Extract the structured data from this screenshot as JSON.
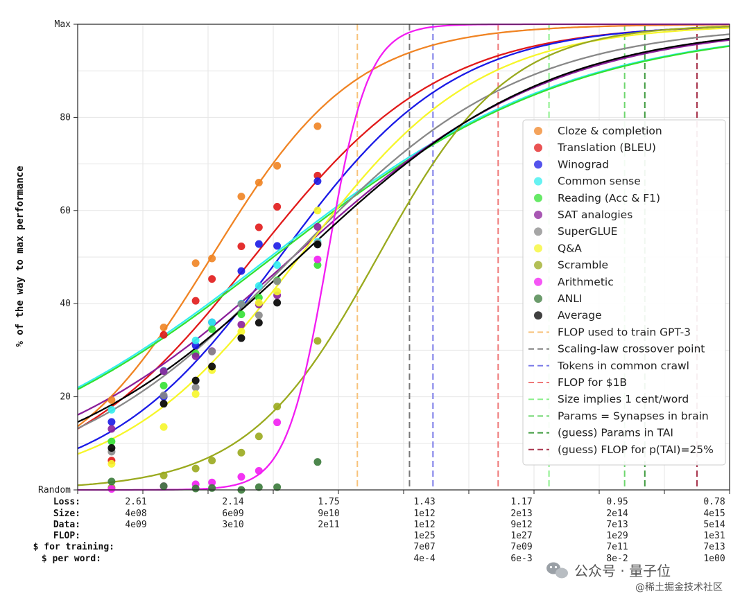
{
  "chart_data": {
    "type": "line",
    "ylabel": "% of the way to max performance",
    "ylim": [
      0,
      100
    ],
    "y_tick_labels": [
      "Random",
      "20",
      "40",
      "60",
      "80",
      "Max"
    ],
    "y_tick_values": [
      0,
      20,
      40,
      60,
      80,
      100
    ],
    "grid": true,
    "legend_placement": "center-right",
    "x_scale": "log (effective compute / loss)",
    "x_columns": [
      {
        "Loss": "2.61",
        "Size": "4e08",
        "Data": "4e09",
        "FLOP": "",
        "$ for training": "",
        "$ per word": ""
      },
      {
        "Loss": "2.14",
        "Size": "6e09",
        "Data": "3e10",
        "FLOP": "",
        "$ for training": "",
        "$ per word": ""
      },
      {
        "Loss": "1.75",
        "Size": "9e10",
        "Data": "2e11",
        "FLOP": "",
        "$ for training": "",
        "$ per word": ""
      },
      {
        "Loss": "1.43",
        "Size": "1e12",
        "Data": "1e12",
        "FLOP": "1e25",
        "$ for training": "7e07",
        "$ per word": "4e-4"
      },
      {
        "Loss": "1.17",
        "Size": "2e13",
        "Data": "9e12",
        "FLOP": "1e27",
        "$ for training": "7e09",
        "$ per word": "6e-3"
      },
      {
        "Loss": "0.95",
        "Size": "2e14",
        "Data": "7e13",
        "FLOP": "1e29",
        "$ for training": "7e11",
        "$ per word": "8e-2"
      },
      {
        "Loss": "0.78",
        "Size": "4e15",
        "Data": "5e14",
        "FLOP": "1e31",
        "$ for training": "7e13",
        "$ per word": "1e00"
      }
    ],
    "row_labels": [
      "Loss:",
      "Size:",
      "Data:",
      "FLOP:",
      "$ for training:",
      "$ per word:"
    ],
    "x_ticks": [
      0.0,
      0.1,
      0.2,
      0.3,
      0.4,
      0.5,
      0.6,
      0.7,
      0.8,
      0.9,
      1.0
    ],
    "series": [
      {
        "name": "Cloze & completion",
        "color": "#f08424",
        "fit": {
          "mid": 0.205,
          "k": 9.0
        },
        "points": [
          [
            0.052,
            19.3
          ],
          [
            0.132,
            34.9
          ],
          [
            0.181,
            48.7
          ],
          [
            0.206,
            49.7
          ],
          [
            0.251,
            63.0
          ],
          [
            0.278,
            66.0
          ],
          [
            0.306,
            69.6
          ],
          [
            0.368,
            78.1
          ]
        ]
      },
      {
        "name": "Translation (BLEU)",
        "color": "#e11a1a",
        "fit": {
          "mid": 0.27,
          "k": 7.0
        },
        "points": [
          [
            0.052,
            6.3
          ],
          [
            0.132,
            33.3
          ],
          [
            0.181,
            40.6
          ],
          [
            0.206,
            45.3
          ],
          [
            0.251,
            52.3
          ],
          [
            0.278,
            56.4
          ],
          [
            0.306,
            60.8
          ],
          [
            0.368,
            67.5
          ]
        ]
      },
      {
        "name": "Winograd",
        "color": "#1a1ae6",
        "fit": {
          "mid": 0.31,
          "k": 7.5
        },
        "points": [
          [
            0.052,
            14.6
          ],
          [
            0.132,
            20.0
          ],
          [
            0.181,
            31.0
          ],
          [
            0.206,
            36.0
          ],
          [
            0.251,
            47.0
          ],
          [
            0.278,
            52.8
          ],
          [
            0.306,
            52.4
          ],
          [
            0.368,
            66.3
          ]
        ]
      },
      {
        "name": "Common sense",
        "color": "#33eeee",
        "fit": {
          "mid": 0.295,
          "k": 4.3
        },
        "points": [
          [
            0.052,
            17.2
          ],
          [
            0.132,
            25.6
          ],
          [
            0.181,
            32.1
          ],
          [
            0.206,
            36.0
          ],
          [
            0.251,
            40.0
          ],
          [
            0.278,
            43.8
          ],
          [
            0.306,
            48.3
          ],
          [
            0.368,
            53.3
          ]
        ]
      },
      {
        "name": "Reading (Acc & F1)",
        "color": "#33e133",
        "fit": {
          "mid": 0.3,
          "k": 4.3
        },
        "points": [
          [
            0.052,
            10.4
          ],
          [
            0.132,
            22.4
          ],
          [
            0.181,
            29.3
          ],
          [
            0.206,
            34.5
          ],
          [
            0.251,
            37.7
          ],
          [
            0.278,
            41.3
          ],
          [
            0.306,
            45.0
          ],
          [
            0.368,
            48.3
          ]
        ]
      },
      {
        "name": "SAT analogies",
        "color": "#8b1f9a",
        "fit": {
          "mid": 0.33,
          "k": 5.0
        },
        "points": [
          [
            0.052,
            13.1
          ],
          [
            0.132,
            25.5
          ],
          [
            0.181,
            28.7
          ],
          [
            0.206,
            29.8
          ],
          [
            0.251,
            35.5
          ],
          [
            0.278,
            39.8
          ],
          [
            0.306,
            41.8
          ],
          [
            0.368,
            56.5
          ]
        ]
      },
      {
        "name": "SuperGLUE",
        "color": "#888888",
        "fit": {
          "mid": 0.33,
          "k": 5.7
        },
        "points": [
          [
            0.052,
            8.2
          ],
          [
            0.132,
            20.3
          ],
          [
            0.181,
            22.0
          ],
          [
            0.206,
            29.7
          ],
          [
            0.251,
            39.9
          ],
          [
            0.278,
            37.5
          ],
          [
            0.306,
            44.8
          ],
          [
            0.368,
            53.0
          ]
        ]
      },
      {
        "name": "Q&A",
        "color": "#f6f62a",
        "fit": {
          "mid": 0.34,
          "k": 7.3
        },
        "points": [
          [
            0.052,
            5.6
          ],
          [
            0.132,
            13.5
          ],
          [
            0.181,
            20.6
          ],
          [
            0.206,
            25.7
          ],
          [
            0.251,
            34.0
          ],
          [
            0.278,
            40.2
          ],
          [
            0.306,
            42.6
          ],
          [
            0.368,
            60.0
          ]
        ]
      },
      {
        "name": "Scramble",
        "color": "#9aaa1e",
        "fit": {
          "mid": 0.46,
          "k": 10.0
        },
        "points": [
          [
            0.052,
            0.5
          ],
          [
            0.132,
            3.1
          ],
          [
            0.181,
            4.6
          ],
          [
            0.206,
            6.3
          ],
          [
            0.251,
            8.0
          ],
          [
            0.278,
            11.5
          ],
          [
            0.306,
            17.9
          ],
          [
            0.368,
            32.0
          ]
        ]
      },
      {
        "name": "Arithmetic",
        "color": "#f21df2",
        "fit": {
          "mid": 0.383,
          "k": 32.0
        },
        "points": [
          [
            0.052,
            0.2
          ],
          [
            0.132,
            0.8
          ],
          [
            0.181,
            1.2
          ],
          [
            0.206,
            1.6
          ],
          [
            0.251,
            2.8
          ],
          [
            0.278,
            4.1
          ],
          [
            0.306,
            14.5
          ],
          [
            0.368,
            49.5
          ]
        ]
      },
      {
        "name": "ANLI",
        "color": "#3a7a3a",
        "fit": null,
        "points": [
          [
            0.052,
            1.8
          ],
          [
            0.132,
            0.8
          ],
          [
            0.181,
            0.3
          ],
          [
            0.206,
            0.4
          ],
          [
            0.251,
            0.0
          ],
          [
            0.278,
            0.6
          ],
          [
            0.306,
            0.6
          ],
          [
            0.368,
            6.0
          ]
        ]
      },
      {
        "name": "Average",
        "color": "#000000",
        "fit": {
          "mid": 0.34,
          "k": 5.2
        },
        "points": [
          [
            0.052,
            9.0
          ],
          [
            0.132,
            18.5
          ],
          [
            0.181,
            23.5
          ],
          [
            0.206,
            26.5
          ],
          [
            0.251,
            32.6
          ],
          [
            0.278,
            35.9
          ],
          [
            0.306,
            40.2
          ],
          [
            0.368,
            52.7
          ]
        ]
      }
    ],
    "vlines": [
      {
        "name": "FLOP used to train GPT-3",
        "color": "#f8c27a",
        "x": 0.429
      },
      {
        "name": "Scaling-law crossover point",
        "color": "#777777",
        "x": 0.509
      },
      {
        "name": "Tokens in common crawl",
        "color": "#7a7ae8",
        "x": 0.545
      },
      {
        "name": "FLOP for $1B",
        "color": "#ef7878",
        "x": 0.645
      },
      {
        "name": "Size implies 1 cent/word",
        "color": "#8bef8b",
        "x": 0.723
      },
      {
        "name": "Params = Synapses in brain",
        "color": "#6cd66c",
        "x": 0.839
      },
      {
        "name": "(guess) Params in TAI",
        "color": "#3f9b3f",
        "x": 0.87
      },
      {
        "name": "(guess) FLOP for p(TAI)=25%",
        "color": "#a8354d",
        "x": 0.95
      }
    ]
  },
  "watermark": {
    "line1": "公众号 · 量子位",
    "line2": "@稀土掘金技术社区"
  }
}
